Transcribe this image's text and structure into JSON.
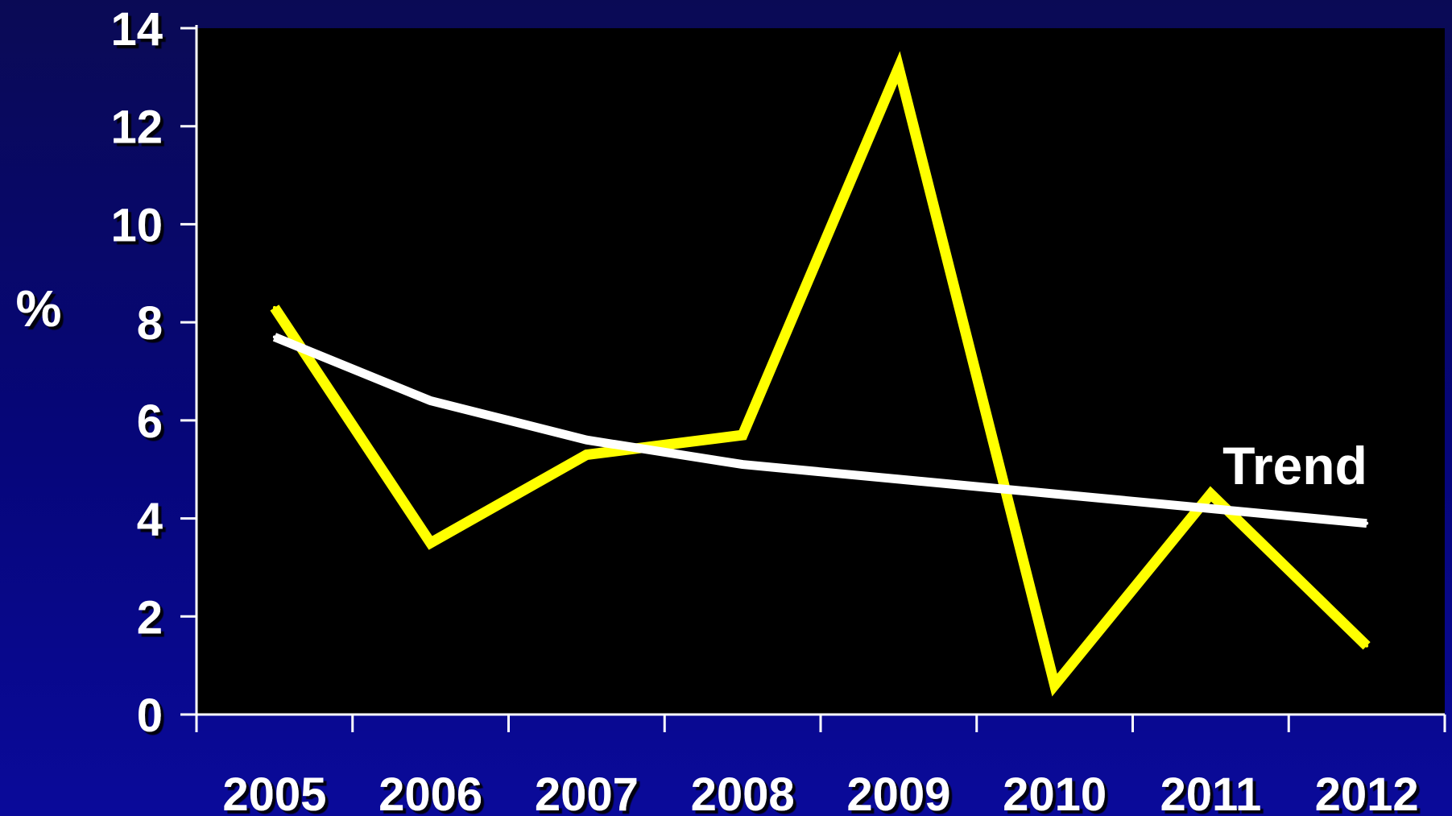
{
  "chart_data": {
    "type": "line",
    "ylabel": "%",
    "xlabel": "",
    "title": "",
    "categories": [
      "2005",
      "2006",
      "2007",
      "2008",
      "2009",
      "2010",
      "2011",
      "2012"
    ],
    "ylim": [
      0,
      14
    ],
    "yticks": [
      0,
      2,
      4,
      6,
      8,
      10,
      12,
      14
    ],
    "grid": false,
    "series": [
      {
        "values": [
          8.3,
          3.5,
          5.3,
          5.7,
          13.2,
          0.6,
          4.5,
          1.4
        ],
        "color": "#ffff00"
      },
      {
        "name": "Trend",
        "values": [
          7.7,
          6.4,
          5.6,
          5.1,
          4.8,
          4.5,
          4.2,
          3.9
        ],
        "color": "#ffffff"
      }
    ],
    "colors": {
      "plot_background": "#000000",
      "axis": "#ffffff",
      "label": "#ffffff"
    }
  }
}
